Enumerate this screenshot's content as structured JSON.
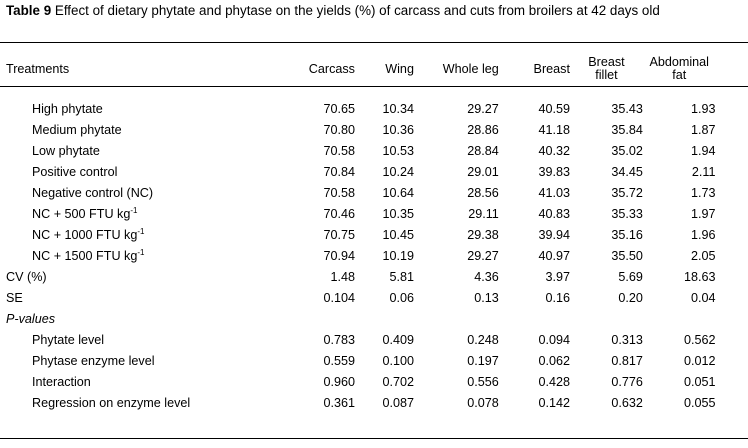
{
  "caption": {
    "label": "Table 9",
    "text": "Effect of dietary phytate and phytase on the yields (%) of carcass and cuts from broilers at 42 days old"
  },
  "headers": {
    "treatments": "Treatments",
    "carcass": "Carcass",
    "wing": "Wing",
    "whole_leg": "Whole leg",
    "breast": "Breast",
    "breast_fillet_1": "Breast",
    "breast_fillet_2": "fillet",
    "abdominal_fat_1": "Abdominal",
    "abdominal_fat_2": "fat"
  },
  "rows": [
    {
      "label": "High phytate",
      "sup": "",
      "values": [
        "70.65",
        "10.34",
        "29.27",
        "40.59",
        "35.43",
        "1.93"
      ]
    },
    {
      "label": "Medium phytate",
      "sup": "",
      "values": [
        "70.80",
        "10.36",
        "28.86",
        "41.18",
        "35.84",
        "1.87"
      ]
    },
    {
      "label": "Low phytate",
      "sup": "",
      "values": [
        "70.58",
        "10.53",
        "28.84",
        "40.32",
        "35.02",
        "1.94"
      ]
    },
    {
      "label": "Positive control",
      "sup": "",
      "values": [
        "70.84",
        "10.24",
        "29.01",
        "39.83",
        "34.45",
        "2.11"
      ]
    },
    {
      "label": "Negative control (NC)",
      "sup": "",
      "values": [
        "70.58",
        "10.64",
        "28.56",
        "41.03",
        "35.72",
        "1.73"
      ]
    },
    {
      "label": "NC + 500 FTU kg",
      "sup": "-1",
      "values": [
        "70.46",
        "10.35",
        "29.11",
        "40.83",
        "35.33",
        "1.97"
      ]
    },
    {
      "label": "NC + 1000 FTU kg",
      "sup": "-1",
      "values": [
        "70.75",
        "10.45",
        "29.38",
        "39.94",
        "35.16",
        "1.96"
      ]
    },
    {
      "label": "NC + 1500 FTU kg",
      "sup": "-1",
      "values": [
        "70.94",
        "10.19",
        "29.27",
        "40.97",
        "35.50",
        "2.05"
      ]
    }
  ],
  "cv": {
    "label": "CV (%)",
    "values": [
      "1.48",
      "5.81",
      "4.36",
      "3.97",
      "5.69",
      "18.63"
    ]
  },
  "se": {
    "label": "SE",
    "values": [
      "0.104",
      "0.06",
      "0.13",
      "0.16",
      "0.20",
      "0.04"
    ]
  },
  "pvalues_label": "P-values",
  "prows": [
    {
      "label": "Phytate level",
      "values": [
        "0.783",
        "0.409",
        "0.248",
        "0.094",
        "0.313",
        "0.562"
      ]
    },
    {
      "label": "Phytase enzyme level",
      "values": [
        "0.559",
        "0.100",
        "0.197",
        "0.062",
        "0.817",
        "0.012"
      ]
    },
    {
      "label": "Interaction",
      "values": [
        "0.960",
        "0.702",
        "0.556",
        "0.428",
        "0.776",
        "0.051"
      ]
    },
    {
      "label": "Regression on enzyme level",
      "values": [
        "0.361",
        "0.087",
        "0.078",
        "0.142",
        "0.632",
        "0.055"
      ]
    }
  ]
}
